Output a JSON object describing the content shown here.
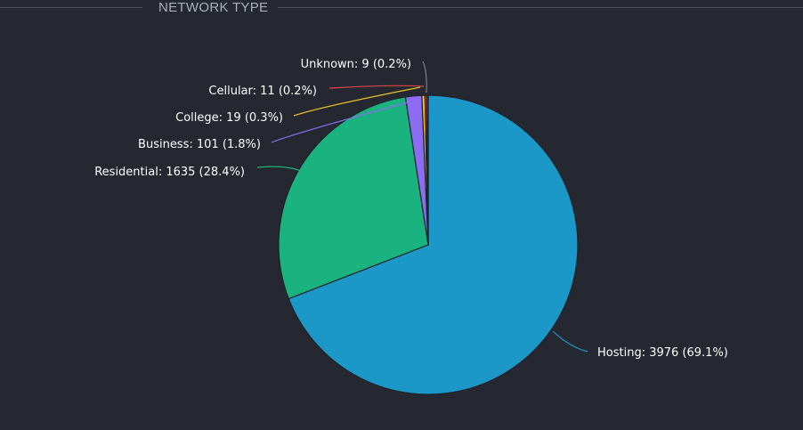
{
  "panel": {
    "title": "NETWORK TYPE"
  },
  "chart_data": {
    "type": "pie",
    "title": "",
    "slices": [
      {
        "label": "Hosting: 3976 (69.1%)",
        "name": "Hosting",
        "value": 3976,
        "percent": 69.1,
        "color": "#1b98c8"
      },
      {
        "label": "Residential: 1635 (28.4%)",
        "name": "Residential",
        "value": 1635,
        "percent": 28.4,
        "color": "#1ab37f"
      },
      {
        "label": "Business: 101 (1.8%)",
        "name": "Business",
        "value": 101,
        "percent": 1.8,
        "color": "#8b6cf2"
      },
      {
        "label": "College: 19 (0.3%)",
        "name": "College",
        "value": 19,
        "percent": 0.3,
        "color": "#e6c229"
      },
      {
        "label": "Cellular: 11 (0.2%)",
        "name": "Cellular",
        "value": 11,
        "percent": 0.2,
        "color": "#e0464a"
      },
      {
        "label": "Unknown: 9 (0.2%)",
        "name": "Unknown",
        "value": 9,
        "percent": 0.2,
        "color": "#5a5e66"
      }
    ]
  }
}
